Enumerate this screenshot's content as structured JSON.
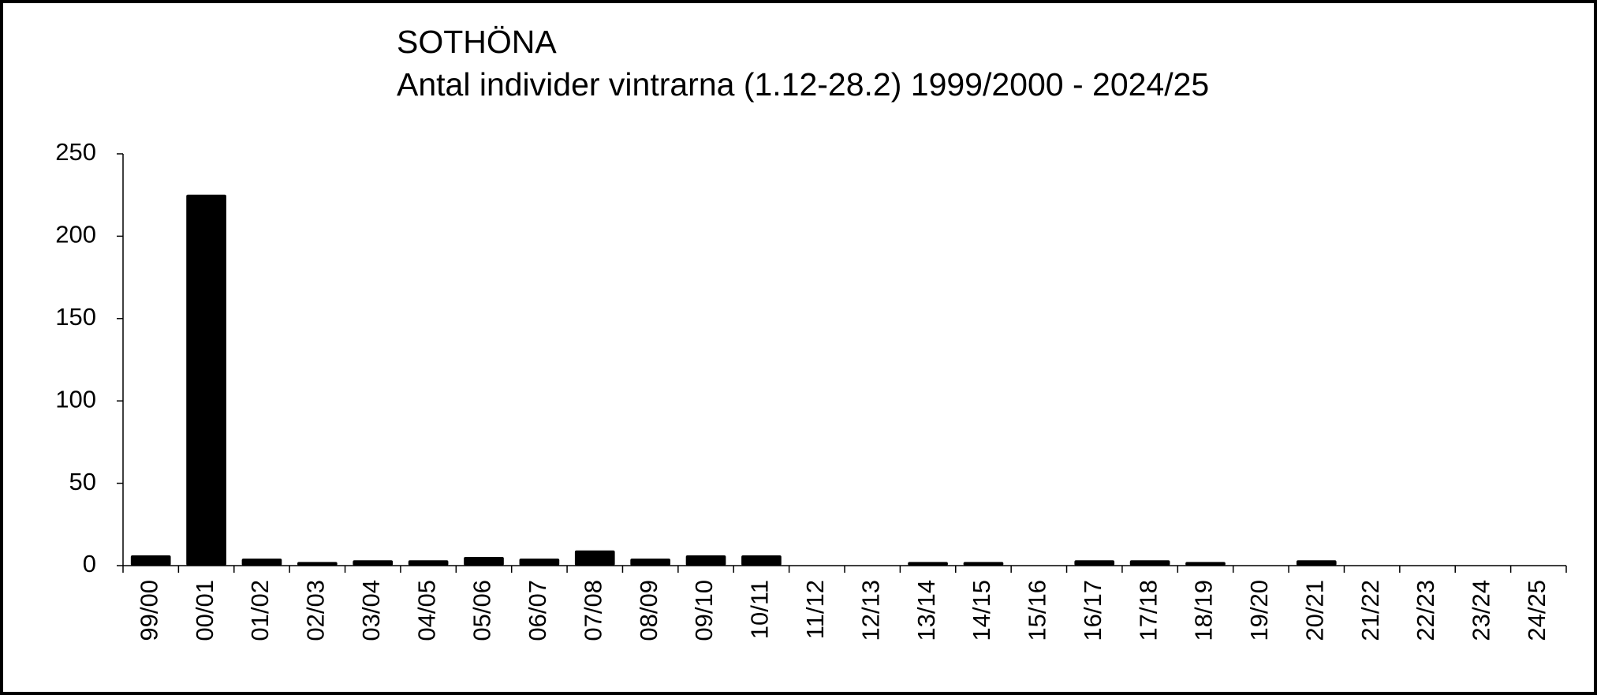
{
  "chart_data": {
    "type": "bar",
    "title": "SOTHÖNA",
    "subtitle": "Antal individer vintrarna (1.12-28.2) 1999/2000 - 2024/25",
    "categories": [
      "99/00",
      "00/01",
      "01/02",
      "02/03",
      "03/04",
      "04/05",
      "05/06",
      "06/07",
      "07/08",
      "08/09",
      "09/10",
      "10/11",
      "11/12",
      "12/13",
      "13/14",
      "14/15",
      "15/16",
      "16/17",
      "17/18",
      "18/19",
      "19/20",
      "20/21",
      "21/22",
      "22/23",
      "23/24",
      "24/25"
    ],
    "values": [
      6,
      225,
      4,
      2,
      3,
      3,
      5,
      4,
      9,
      4,
      6,
      6,
      0,
      0,
      2,
      2,
      0,
      3,
      3,
      2,
      0,
      3,
      0,
      0,
      0,
      0
    ],
    "color": "#000000",
    "ylim": [
      0,
      250
    ],
    "yticks": [
      0,
      50,
      100,
      150,
      200,
      250
    ],
    "grid": false
  }
}
